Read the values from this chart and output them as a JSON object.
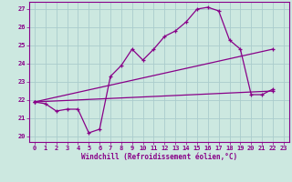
{
  "xlabel": "Windchill (Refroidissement éolien,°C)",
  "bg_color": "#cce8e0",
  "line_color": "#880088",
  "grid_color": "#aacccc",
  "xlim": [
    -0.5,
    23.5
  ],
  "ylim": [
    19.7,
    27.4
  ],
  "yticks": [
    20,
    21,
    22,
    23,
    24,
    25,
    26,
    27
  ],
  "xticks": [
    0,
    1,
    2,
    3,
    4,
    5,
    6,
    7,
    8,
    9,
    10,
    11,
    12,
    13,
    14,
    15,
    16,
    17,
    18,
    19,
    20,
    21,
    22,
    23
  ],
  "line1_x": [
    0,
    1,
    2,
    3,
    4,
    5,
    6,
    7,
    8,
    9,
    10,
    11,
    12,
    13,
    14,
    15,
    16,
    17,
    18,
    19,
    20,
    21,
    22
  ],
  "line1_y": [
    21.9,
    21.8,
    21.4,
    21.5,
    21.5,
    20.2,
    20.4,
    23.3,
    23.9,
    24.8,
    24.2,
    24.8,
    25.5,
    25.8,
    26.3,
    27.0,
    27.1,
    26.9,
    25.3,
    24.8,
    22.3,
    22.3,
    22.6
  ],
  "line2_x": [
    0,
    22
  ],
  "line2_y": [
    21.9,
    22.5
  ],
  "line3_x": [
    0,
    22
  ],
  "line3_y": [
    21.9,
    24.8
  ]
}
